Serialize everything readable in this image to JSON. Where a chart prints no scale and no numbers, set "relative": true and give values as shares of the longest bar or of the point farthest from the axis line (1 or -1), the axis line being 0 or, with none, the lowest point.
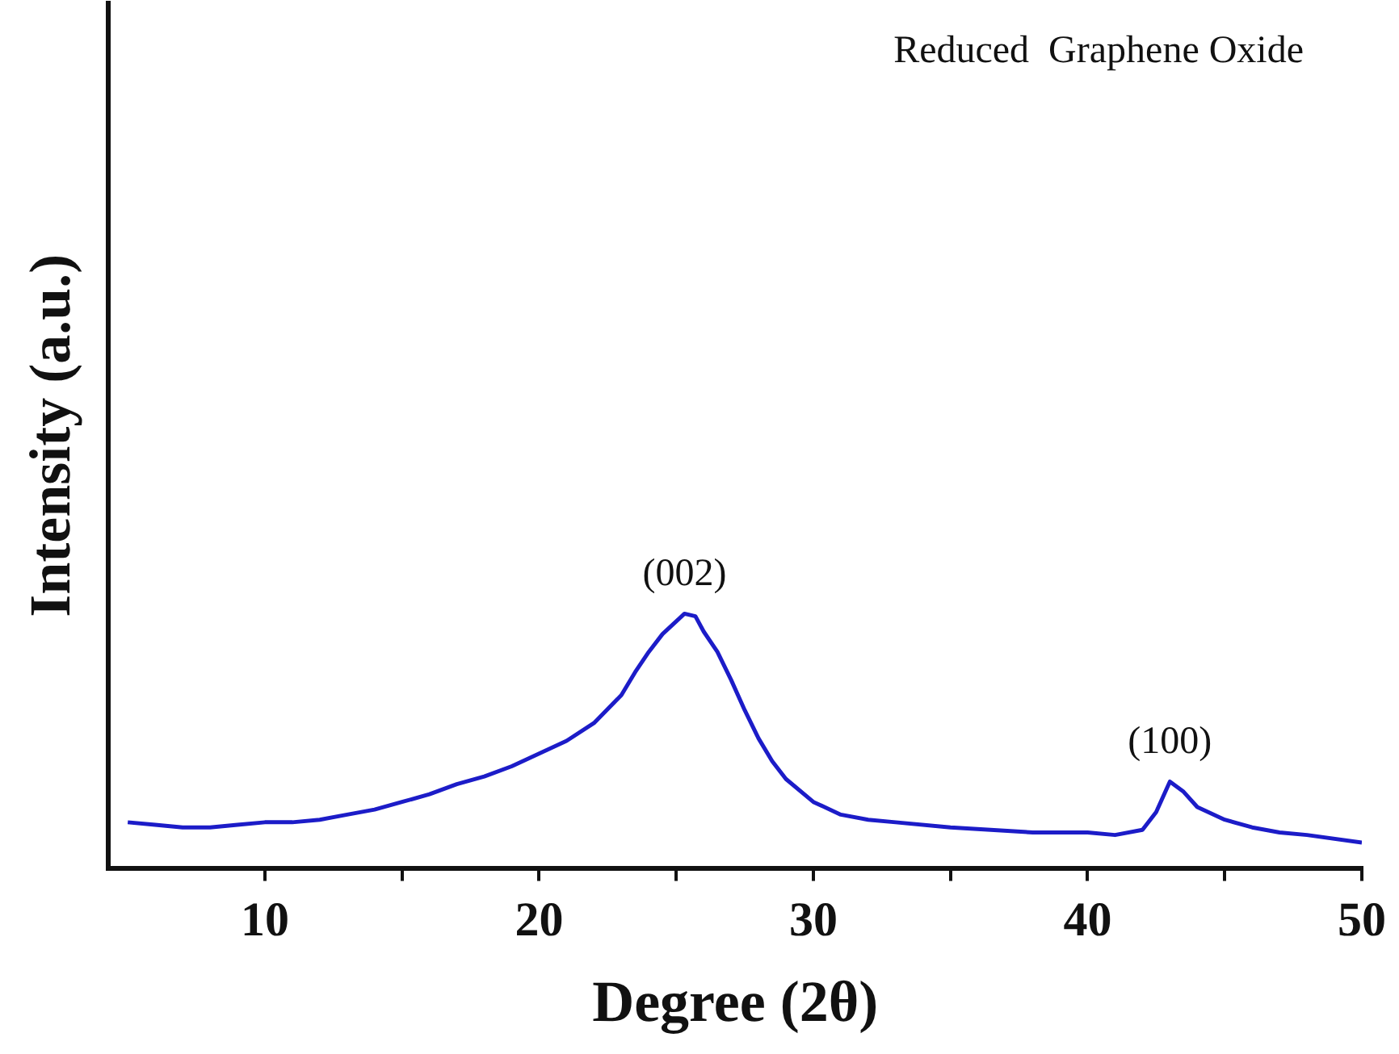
{
  "chart_data": {
    "type": "line",
    "xlabel": "Degree (2θ)",
    "ylabel": "Intensity (a.u.)",
    "relative": true,
    "color": "#1c1cc8",
    "marker": "none",
    "grid": false,
    "legend": false,
    "xlim": [
      4.3,
      50
    ],
    "xticks": [
      10,
      {
        "value": 15,
        "label": null
      },
      20,
      {
        "value": 25,
        "label": null
      },
      30,
      {
        "value": 35,
        "label": null
      },
      40,
      {
        "value": 45,
        "label": null
      },
      50
    ],
    "x": [
      5,
      6,
      7,
      8,
      9,
      10,
      11,
      12,
      13,
      14,
      15,
      16,
      17,
      18,
      19,
      20,
      21,
      22,
      23,
      23.5,
      24,
      24.5,
      25,
      25.3,
      25.7,
      26,
      26.5,
      27,
      27.5,
      28,
      28.5,
      29,
      30,
      31,
      32,
      33,
      35,
      38,
      40,
      41,
      42,
      42.5,
      43,
      43.5,
      44,
      45,
      46,
      47,
      48,
      50
    ],
    "values": [
      0.18,
      0.17,
      0.16,
      0.16,
      0.17,
      0.18,
      0.18,
      0.19,
      0.21,
      0.23,
      0.26,
      0.29,
      0.33,
      0.36,
      0.4,
      0.45,
      0.5,
      0.57,
      0.68,
      0.77,
      0.85,
      0.92,
      0.97,
      1,
      0.99,
      0.93,
      0.85,
      0.74,
      0.62,
      0.51,
      0.42,
      0.35,
      0.26,
      0.21,
      0.19,
      0.18,
      0.16,
      0.14,
      0.14,
      0.13,
      0.15,
      0.22,
      0.34,
      0.3,
      0.24,
      0.19,
      0.16,
      0.14,
      0.13,
      0.1
    ],
    "annotations": [
      {
        "text": "(002)",
        "x": 25.3,
        "y": 1
      },
      {
        "text": "(100)",
        "x": 43,
        "y": 0.34
      },
      "Reduced  Graphene Oxide"
    ]
  }
}
